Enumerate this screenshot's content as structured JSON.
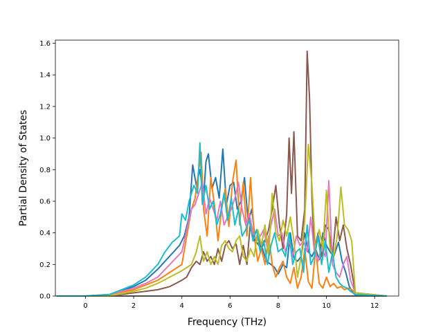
{
  "chart_data": {
    "type": "line",
    "title": "",
    "xlabel": "Frequency (THz)",
    "ylabel": "Partial Density of States",
    "xlim": [
      -1.25,
      13.0
    ],
    "ylim": [
      0.0,
      1.62
    ],
    "xticks": [
      0,
      2,
      4,
      6,
      8,
      10,
      12
    ],
    "xtick_labels": [
      "0",
      "2",
      "4",
      "6",
      "8",
      "10",
      "12"
    ],
    "yticks": [
      0.0,
      0.2,
      0.4,
      0.6,
      0.8,
      1.0,
      1.2,
      1.4,
      1.6
    ],
    "ytick_labels": [
      "0.0",
      "0.2",
      "0.4",
      "0.6",
      "0.8",
      "1.0",
      "1.2",
      "1.4",
      "1.6"
    ],
    "grid": false,
    "legend": "none",
    "series": [
      {
        "color": "#1f77b4",
        "x": [
          -1.2,
          0,
          1,
          2,
          2.5,
          3,
          3.3,
          3.6,
          3.9,
          4.1,
          4.3,
          4.45,
          4.6,
          4.75,
          4.9,
          5.0,
          5.1,
          5.25,
          5.4,
          5.55,
          5.7,
          5.85,
          6.0,
          6.15,
          6.3,
          6.45,
          6.6,
          6.75,
          6.9,
          7.05,
          7.2,
          7.35,
          7.5,
          7.7,
          7.85,
          8.0,
          8.2,
          8.35,
          8.5,
          8.65,
          8.8,
          8.95,
          9.1,
          9.25,
          9.4,
          9.55,
          9.7,
          9.85,
          10.0,
          10.15,
          10.3,
          10.5,
          10.65,
          10.8,
          10.95,
          11.1,
          11.25,
          12.5
        ],
        "y": [
          0,
          0,
          0.01,
          0.06,
          0.1,
          0.17,
          0.22,
          0.27,
          0.32,
          0.38,
          0.5,
          0.83,
          0.7,
          0.8,
          0.62,
          0.85,
          0.9,
          0.68,
          0.75,
          0.62,
          0.93,
          0.58,
          0.7,
          0.72,
          0.55,
          0.6,
          0.75,
          0.47,
          0.55,
          0.35,
          0.32,
          0.3,
          0.22,
          0.2,
          0.18,
          0.14,
          0.2,
          0.18,
          0.4,
          0.24,
          0.22,
          0.25,
          0.4,
          0.28,
          0.25,
          0.3,
          0.23,
          0.4,
          0.32,
          0.28,
          0.25,
          0.34,
          0.22,
          0.15,
          0.06,
          0.02,
          0,
          0
        ]
      },
      {
        "color": "#ff7f0e",
        "x": [
          -1.2,
          0,
          1,
          2,
          2.5,
          3,
          3.5,
          4,
          4.2,
          4.4,
          4.55,
          4.7,
          4.8,
          4.9,
          5.05,
          5.2,
          5.35,
          5.5,
          5.65,
          5.8,
          5.95,
          6.1,
          6.25,
          6.4,
          6.55,
          6.7,
          6.85,
          7.0,
          7.15,
          7.3,
          7.45,
          7.6,
          7.75,
          7.9,
          8.05,
          8.2,
          8.35,
          8.5,
          8.65,
          8.8,
          8.95,
          9.1,
          9.25,
          9.4,
          9.55,
          9.7,
          9.85,
          10.0,
          10.15,
          10.3,
          10.45,
          10.6,
          10.75,
          10.9,
          11.05,
          11.2,
          12.5
        ],
        "y": [
          0,
          0,
          0.01,
          0.04,
          0.07,
          0.1,
          0.15,
          0.2,
          0.38,
          0.55,
          0.62,
          0.8,
          0.91,
          0.55,
          0.38,
          0.75,
          0.58,
          0.35,
          0.55,
          0.68,
          0.44,
          0.72,
          0.86,
          0.45,
          0.72,
          0.38,
          0.75,
          0.38,
          0.22,
          0.3,
          0.2,
          0.38,
          0.2,
          0.12,
          0.18,
          0.22,
          0.12,
          0.08,
          0.18,
          0.05,
          0.12,
          0.3,
          0.09,
          0.05,
          0.3,
          0.08,
          0.05,
          0.12,
          0.06,
          0.08,
          0.05,
          0.06,
          0.04,
          0.05,
          0.04,
          0.02,
          0
        ]
      },
      {
        "color": "#2ca02c",
        "x": [
          -1.2,
          0,
          2,
          4,
          6,
          8,
          10,
          11,
          12.5
        ],
        "y": [
          0,
          0,
          0,
          0,
          0,
          0,
          0,
          0,
          0
        ]
      },
      {
        "color": "#d62728",
        "x": [
          -1.2,
          0,
          2,
          4,
          6,
          8,
          10,
          11,
          12.5
        ],
        "y": [
          0,
          0,
          0,
          0,
          0,
          0,
          0,
          0,
          0
        ]
      },
      {
        "color": "#9467bd",
        "x": [
          -1.2,
          0,
          2,
          4,
          6,
          8,
          10,
          11,
          12.5
        ],
        "y": [
          0,
          0,
          0,
          0,
          0,
          0,
          0,
          0,
          0
        ]
      },
      {
        "color": "#8c564b",
        "x": [
          -1.2,
          0,
          1,
          2,
          2.5,
          3,
          3.5,
          4,
          4.2,
          4.4,
          4.6,
          4.75,
          4.9,
          5.05,
          5.2,
          5.35,
          5.5,
          5.65,
          5.8,
          5.95,
          6.1,
          6.25,
          6.4,
          6.55,
          6.7,
          6.85,
          7.0,
          7.15,
          7.3,
          7.45,
          7.6,
          7.75,
          7.9,
          8.05,
          8.2,
          8.35,
          8.45,
          8.55,
          8.65,
          8.8,
          8.95,
          9.1,
          9.2,
          9.3,
          9.4,
          9.5,
          9.65,
          9.8,
          9.95,
          10.1,
          10.25,
          10.4,
          10.55,
          10.7,
          10.85,
          11.0,
          11.2,
          12.5
        ],
        "y": [
          0,
          0,
          0,
          0.02,
          0.03,
          0.04,
          0.06,
          0.1,
          0.12,
          0.18,
          0.22,
          0.2,
          0.28,
          0.22,
          0.25,
          0.2,
          0.3,
          0.22,
          0.32,
          0.35,
          0.3,
          0.33,
          0.2,
          0.32,
          0.2,
          0.48,
          0.35,
          0.38,
          0.3,
          0.35,
          0.42,
          0.55,
          0.7,
          0.45,
          0.3,
          0.52,
          1.0,
          0.65,
          1.04,
          0.38,
          0.35,
          0.55,
          1.55,
          1.25,
          0.62,
          0.28,
          0.4,
          0.25,
          0.45,
          0.42,
          0.25,
          0.5,
          0.35,
          0.45,
          0.3,
          0.2,
          0.02,
          0
        ]
      },
      {
        "color": "#e377c2",
        "x": [
          -1.2,
          0,
          1,
          2,
          2.5,
          3,
          3.5,
          4,
          4.2,
          4.4,
          4.55,
          4.7,
          4.85,
          5.0,
          5.15,
          5.3,
          5.45,
          5.6,
          5.75,
          5.9,
          6.05,
          6.2,
          6.35,
          6.5,
          6.65,
          6.8,
          6.95,
          7.1,
          7.25,
          7.4,
          7.55,
          7.7,
          7.85,
          8.0,
          8.15,
          8.3,
          8.45,
          8.6,
          8.75,
          8.9,
          9.05,
          9.2,
          9.35,
          9.5,
          9.65,
          9.8,
          9.95,
          10.1,
          10.25,
          10.4,
          10.55,
          10.7,
          10.85,
          11.0,
          11.2,
          12.5
        ],
        "y": [
          0,
          0,
          0.01,
          0.05,
          0.08,
          0.12,
          0.2,
          0.28,
          0.42,
          0.55,
          0.58,
          0.65,
          0.72,
          0.52,
          0.62,
          0.55,
          0.48,
          0.6,
          0.45,
          0.5,
          0.55,
          0.62,
          0.72,
          0.55,
          0.45,
          0.52,
          0.4,
          0.35,
          0.38,
          0.42,
          0.3,
          0.45,
          0.55,
          0.38,
          0.4,
          0.28,
          0.35,
          0.25,
          0.38,
          0.32,
          0.35,
          0.28,
          0.5,
          0.28,
          0.22,
          0.3,
          0.25,
          0.73,
          0.2,
          0.15,
          0.12,
          0.2,
          0.25,
          0.1,
          0.02,
          0
        ]
      },
      {
        "color": "#7f7f7f",
        "x": [
          -1.2,
          0,
          2,
          4,
          6,
          8,
          10,
          11,
          12.5
        ],
        "y": [
          0,
          0,
          0,
          0,
          0,
          0,
          0,
          0,
          0
        ]
      },
      {
        "color": "#bcbd22",
        "x": [
          -1.2,
          0,
          1,
          2,
          2.5,
          3,
          3.5,
          4,
          4.2,
          4.4,
          4.6,
          4.75,
          4.9,
          5.05,
          5.2,
          5.35,
          5.5,
          5.65,
          5.8,
          5.95,
          6.1,
          6.25,
          6.4,
          6.55,
          6.7,
          6.85,
          7.0,
          7.15,
          7.3,
          7.45,
          7.6,
          7.75,
          7.9,
          8.05,
          8.2,
          8.35,
          8.5,
          8.65,
          8.8,
          8.95,
          9.1,
          9.25,
          9.4,
          9.55,
          9.7,
          9.85,
          10.0,
          10.15,
          10.3,
          10.45,
          10.6,
          10.75,
          10.9,
          11.05,
          11.2,
          12.5
        ],
        "y": [
          0,
          0,
          0,
          0.03,
          0.05,
          0.08,
          0.12,
          0.16,
          0.18,
          0.2,
          0.28,
          0.38,
          0.22,
          0.28,
          0.2,
          0.25,
          0.2,
          0.32,
          0.35,
          0.3,
          0.28,
          0.35,
          0.38,
          0.25,
          0.22,
          0.3,
          0.25,
          0.42,
          0.32,
          0.45,
          0.25,
          0.65,
          0.4,
          0.35,
          0.48,
          0.38,
          0.5,
          0.35,
          0.12,
          0.25,
          0.48,
          0.96,
          0.7,
          0.28,
          0.42,
          0.3,
          0.67,
          0.3,
          0.25,
          0.38,
          0.69,
          0.45,
          0.42,
          0.35,
          0.02,
          0
        ]
      },
      {
        "color": "#17becf",
        "x": [
          -1.2,
          0,
          1,
          2,
          2.5,
          3,
          3.3,
          3.6,
          3.9,
          4.0,
          4.15,
          4.3,
          4.5,
          4.65,
          4.75,
          4.85,
          5.0,
          5.15,
          5.3,
          5.45,
          5.6,
          5.75,
          5.9,
          6.05,
          6.2,
          6.35,
          6.5,
          6.65,
          6.8,
          6.95,
          7.1,
          7.25,
          7.4,
          7.55,
          7.7,
          7.85,
          8.0,
          8.15,
          8.3,
          8.45,
          8.6,
          8.75,
          8.9,
          9.05,
          9.2,
          9.35,
          9.5,
          9.65,
          9.8,
          9.95,
          10.1,
          10.25,
          10.4,
          10.55,
          10.7,
          10.85,
          11.0,
          11.2,
          12.5
        ],
        "y": [
          0,
          0,
          0.01,
          0.07,
          0.12,
          0.2,
          0.28,
          0.34,
          0.38,
          0.52,
          0.48,
          0.6,
          0.7,
          0.65,
          0.97,
          0.58,
          0.7,
          0.55,
          0.6,
          0.45,
          0.52,
          0.65,
          0.48,
          0.62,
          0.45,
          0.55,
          0.38,
          0.42,
          0.48,
          0.35,
          0.42,
          0.28,
          0.35,
          0.2,
          0.32,
          0.4,
          0.28,
          0.3,
          0.25,
          0.4,
          0.2,
          0.28,
          0.3,
          0.15,
          0.45,
          0.2,
          0.25,
          0.38,
          0.2,
          0.35,
          0.15,
          0.28,
          0.12,
          0.08,
          0.06,
          0.05,
          0.03,
          0.01,
          0
        ]
      }
    ]
  }
}
